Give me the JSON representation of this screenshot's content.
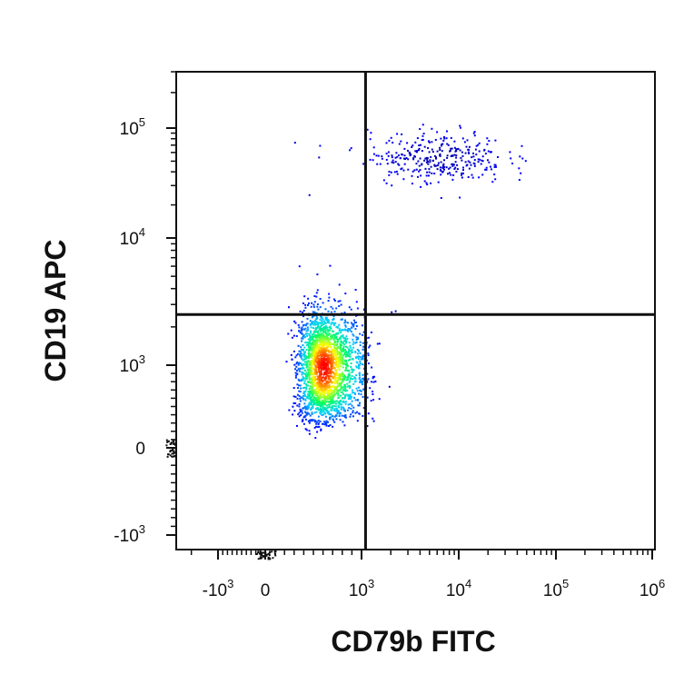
{
  "chart_data": {
    "type": "scatter",
    "plot_style": "density-colored flow cytometry dot plot with quadrant gates",
    "xlabel": "CD79b FITC",
    "ylabel": "CD19 APC",
    "x_scale": "biexponential",
    "y_scale": "biexponential",
    "x_ticks": [
      {
        "value": -1000,
        "base": "-10",
        "exp": "3"
      },
      {
        "value": 0,
        "base": "0",
        "exp": ""
      },
      {
        "value": 1000,
        "base": "10",
        "exp": "3"
      },
      {
        "value": 10000,
        "base": "10",
        "exp": "4"
      },
      {
        "value": 100000,
        "base": "10",
        "exp": "5"
      },
      {
        "value": 1000000,
        "base": "10",
        "exp": "6"
      }
    ],
    "y_ticks": [
      {
        "value": -1000,
        "base": "-10",
        "exp": "3"
      },
      {
        "value": 0,
        "base": "0",
        "exp": ""
      },
      {
        "value": 1000,
        "base": "10",
        "exp": "3"
      },
      {
        "value": 10000,
        "base": "10",
        "exp": "4"
      },
      {
        "value": 100000,
        "base": "10",
        "exp": "5"
      }
    ],
    "xlim": [
      -2500,
      1100000
    ],
    "ylim": [
      -1500,
      300000
    ],
    "quadrant_gate": {
      "x": 1100,
      "y": 2500
    },
    "populations": [
      {
        "label_shown": false,
        "x_center": 600,
        "y_center": 1000,
        "x_spread_log": 0.12,
        "y_spread_log": 0.22,
        "count": 2300,
        "density_colormap": [
          "#0000ff",
          "#00d0ff",
          "#00ff60",
          "#ffff00",
          "#ff0000"
        ]
      },
      {
        "label_shown": false,
        "x_center": 6000,
        "y_center": 55000,
        "x_spread_log": 0.35,
        "y_spread_log": 0.12,
        "count": 330,
        "density_colormap": [
          "#0000ff",
          "#0000b0"
        ]
      }
    ],
    "grid": false,
    "legend": "none"
  }
}
